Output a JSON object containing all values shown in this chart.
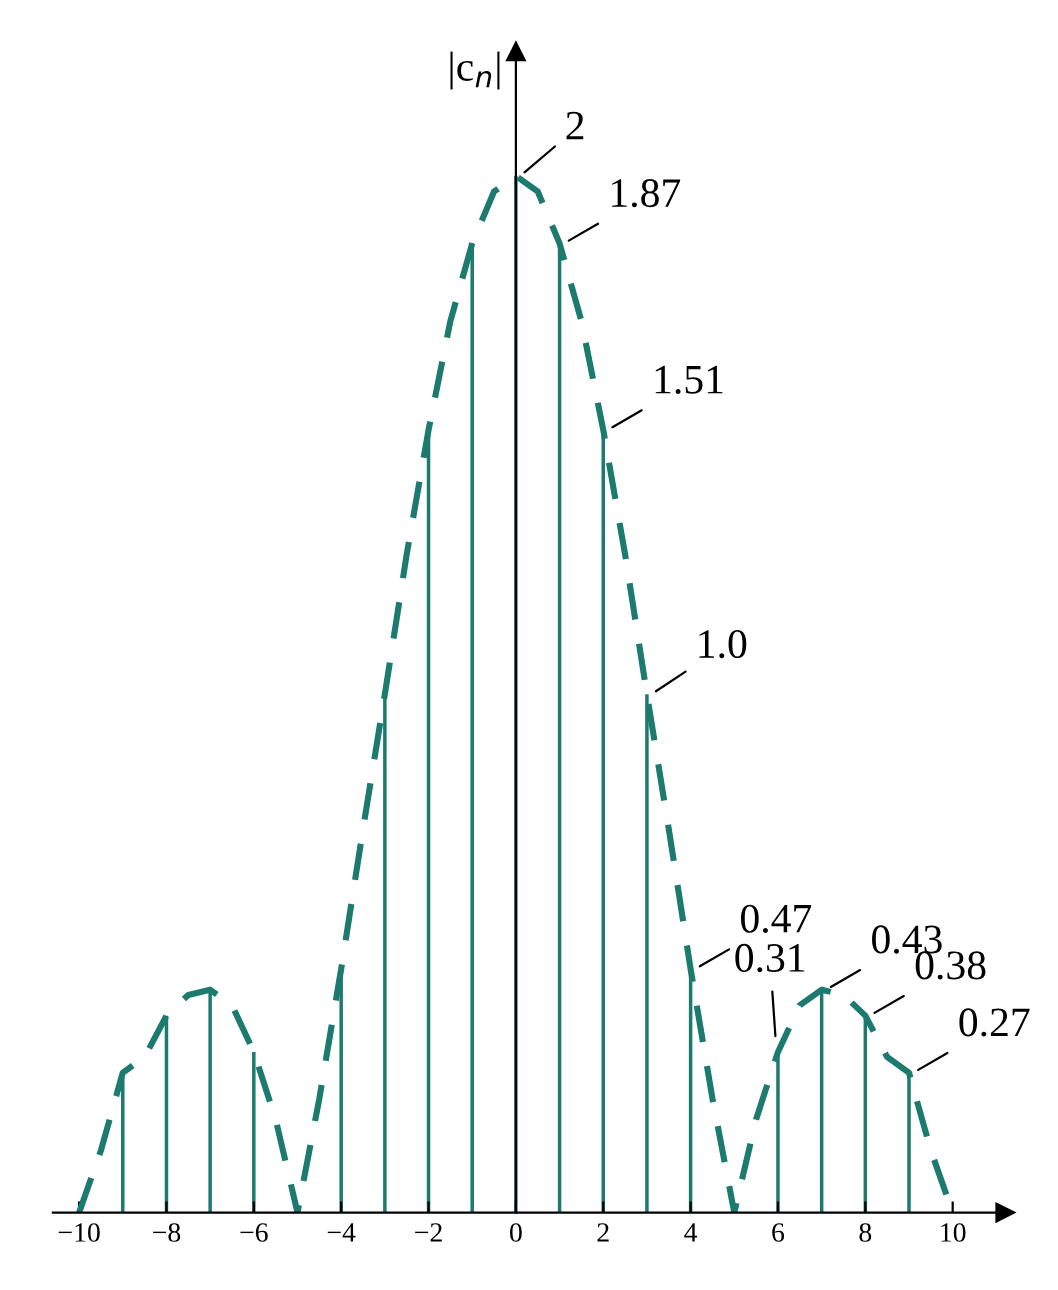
{
  "chart_data": {
    "type": "bar",
    "ylabel": "|c$_{n}$|",
    "x": [
      -10,
      -9,
      -8,
      -7,
      -6,
      -5,
      -4,
      -3,
      -2,
      -1,
      0,
      1,
      2,
      3,
      4,
      5,
      6,
      7,
      8,
      9,
      10
    ],
    "xlim": [
      -10.6,
      11.2
    ],
    "xticks": [
      {
        "value": -10,
        "label": "−10"
      },
      {
        "value": -8,
        "label": "−8"
      },
      {
        "value": -6,
        "label": "−6"
      },
      {
        "value": -4,
        "label": "−4"
      },
      {
        "value": -2,
        "label": "−2"
      },
      0,
      2,
      4,
      6,
      8,
      10
    ],
    "tick_labels": "x",
    "series": [
      {
        "color": "#1c7a6e",
        "values": [
          0,
          0.27,
          0.38,
          0.43,
          0.31,
          0,
          0.47,
          1.0,
          1.51,
          1.87,
          2,
          1.87,
          1.51,
          1.0,
          0.47,
          0,
          0.31,
          0.43,
          0.38,
          0.27,
          0
        ],
        "value_labels": [
          null,
          null,
          null,
          null,
          null,
          null,
          null,
          null,
          null,
          null,
          "2",
          "1.87",
          "1.51",
          "1.0",
          "0.47",
          null,
          "0.31",
          "0.43",
          "0.38",
          "0.27",
          null
        ]
      },
      {
        "type": "line",
        "color": "#1c7a6e",
        "line_style": "dashed",
        "marker": "none",
        "x": [
          -10,
          -9.5,
          -9,
          -8.5,
          -8,
          -7.5,
          -7,
          -6.5,
          -6,
          -5.5,
          -5,
          -4.5,
          -4,
          -3.5,
          -3,
          -2.5,
          -2,
          -1.5,
          -1,
          -0.5,
          0,
          0.5,
          1,
          1.5,
          2,
          2.5,
          3,
          3.5,
          4,
          4.5,
          5,
          5.5,
          6,
          6.5,
          7,
          7.5,
          8,
          8.5,
          9,
          9.5,
          10
        ],
        "values": [
          0,
          0.12,
          0.27,
          0.3,
          0.38,
          0.42,
          0.43,
          0.4,
          0.31,
          0.18,
          0,
          0.22,
          0.47,
          0.74,
          1.0,
          1.27,
          1.51,
          1.72,
          1.87,
          1.97,
          2,
          1.97,
          1.87,
          1.72,
          1.51,
          1.27,
          1.0,
          0.74,
          0.47,
          0.22,
          0,
          0.18,
          0.31,
          0.4,
          0.43,
          0.42,
          0.38,
          0.3,
          0.27,
          0.12,
          0
        ]
      }
    ]
  }
}
